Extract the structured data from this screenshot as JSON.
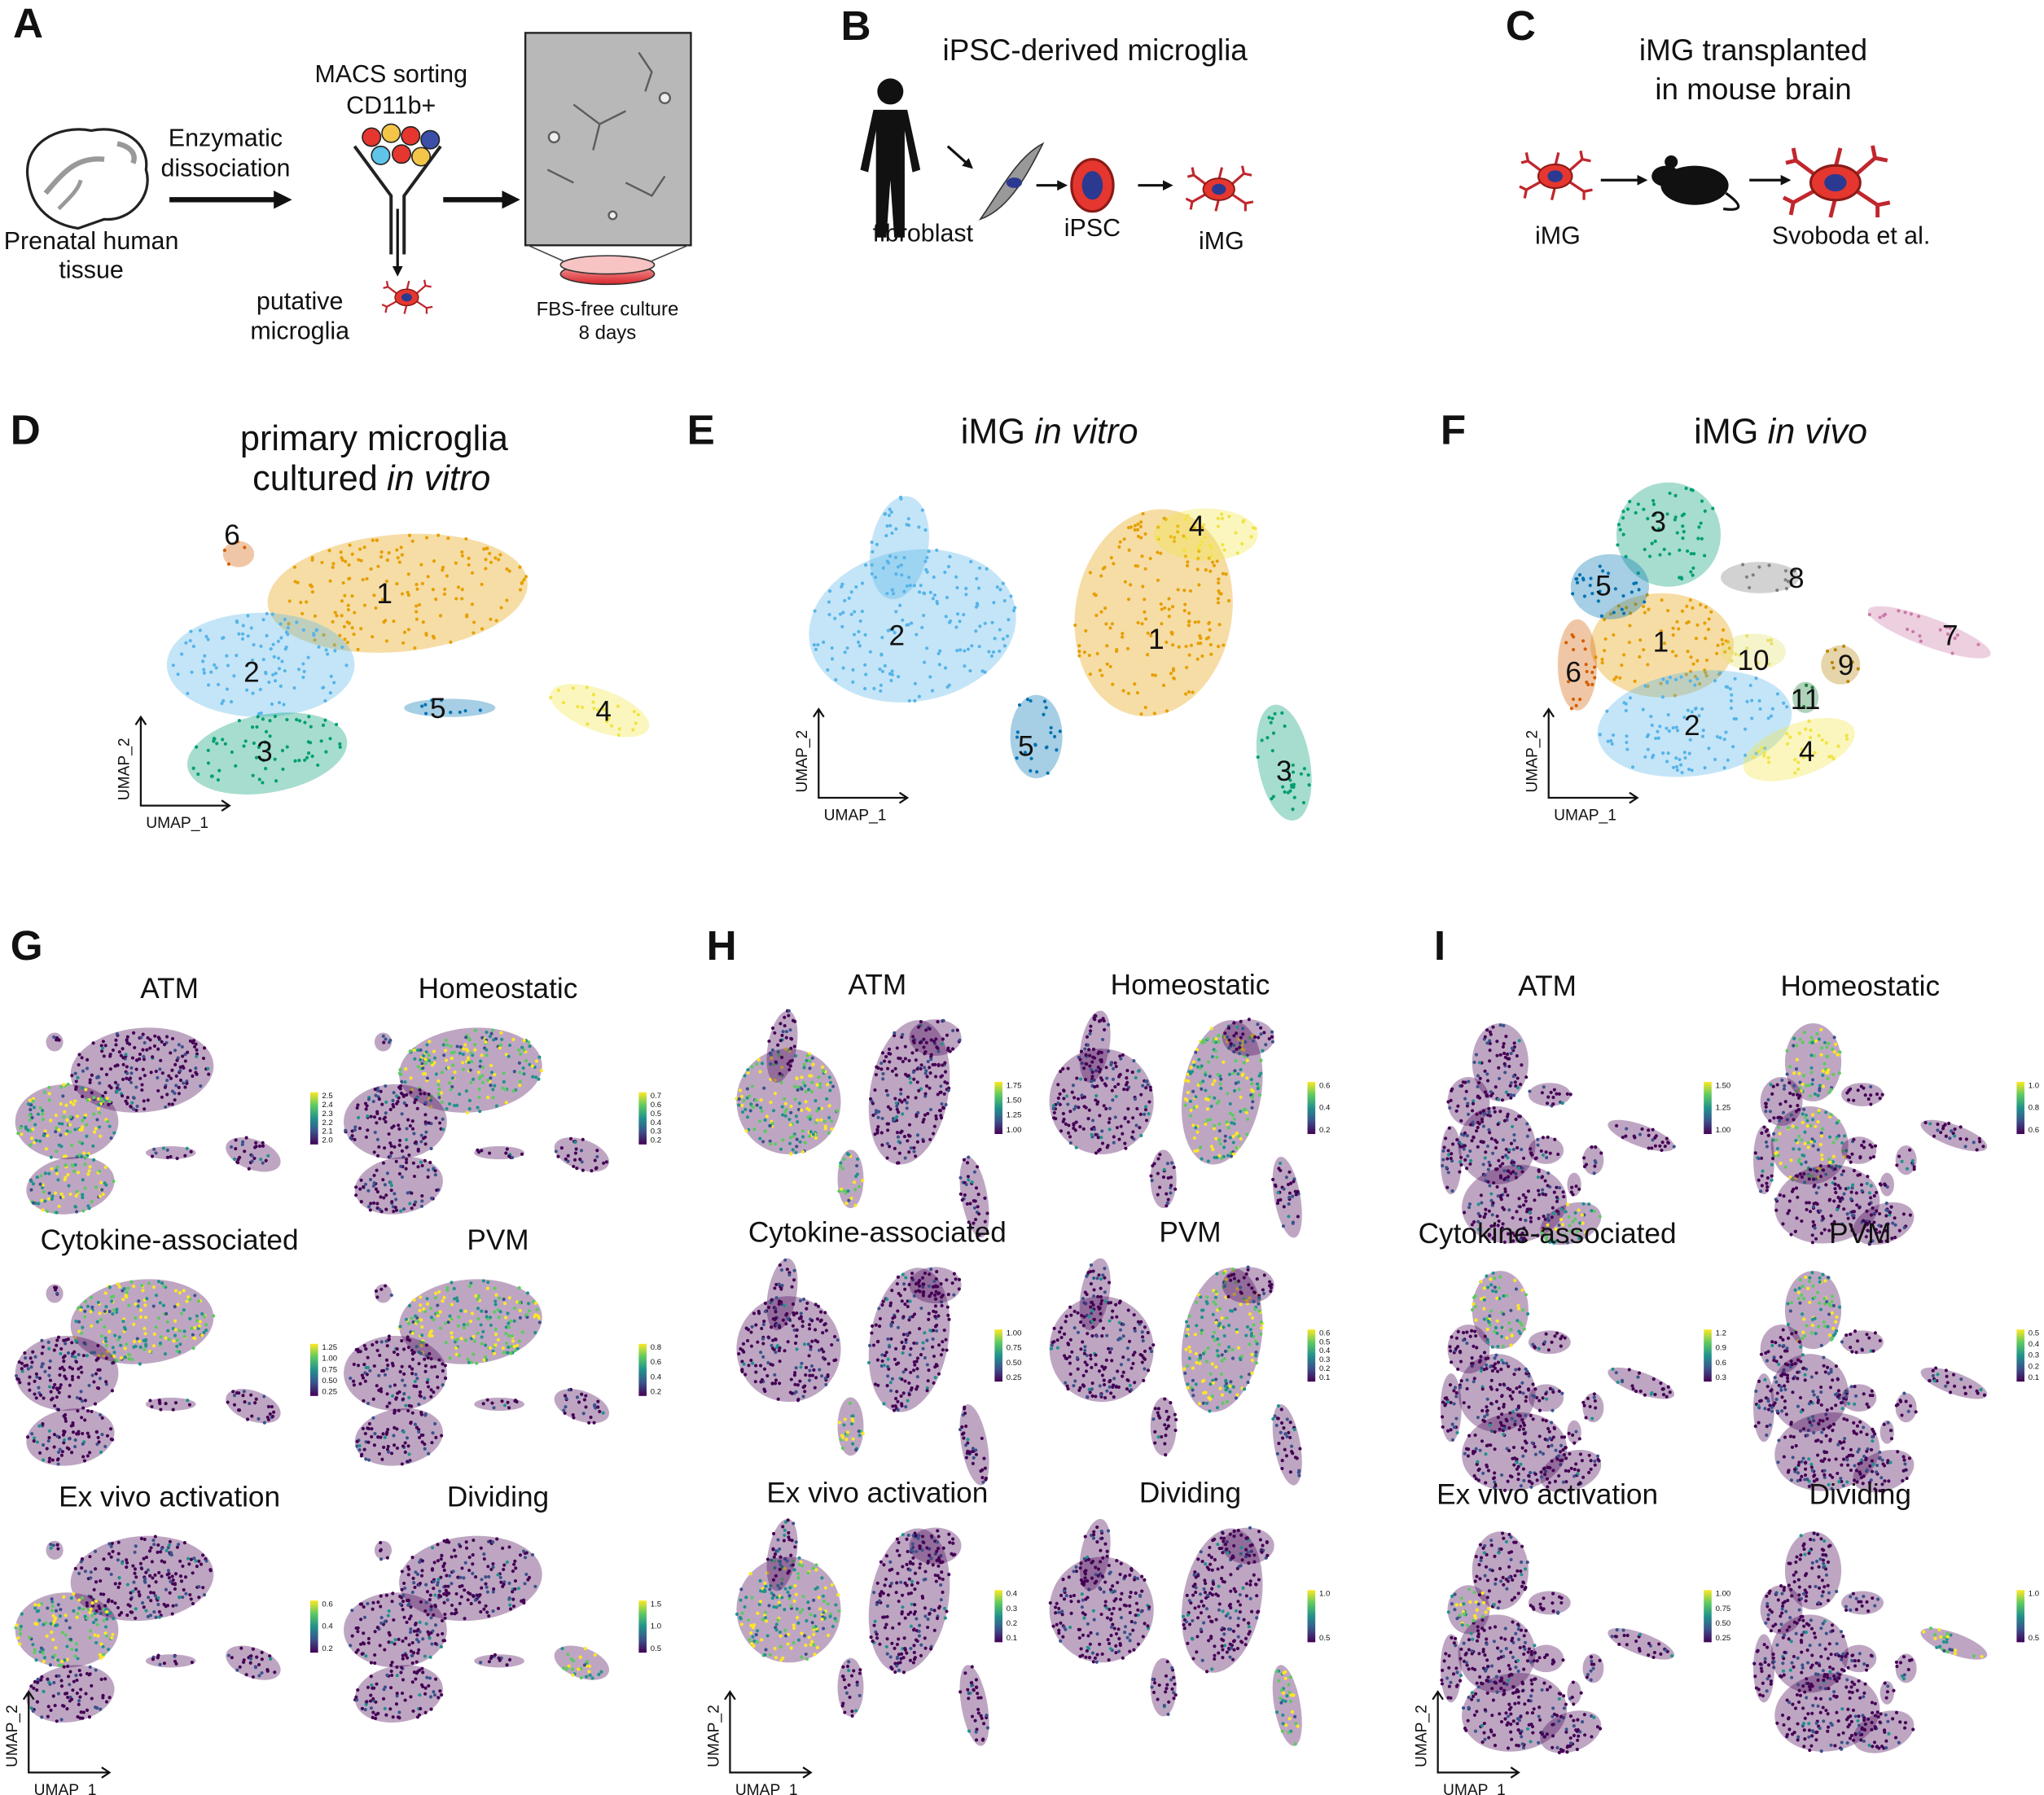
{
  "panels": {
    "A": {
      "letter": "A",
      "source": [
        "Prenatal human",
        "tissue"
      ],
      "step": [
        "Enzymatic",
        "dissociation"
      ],
      "sorting": [
        "MACS sorting",
        "CD11b+"
      ],
      "output": [
        "putative",
        "microglia"
      ],
      "culture": [
        "FBS-free culture",
        "8 days"
      ]
    },
    "B": {
      "letter": "B",
      "title": "iPSC-derived microglia",
      "labels": [
        "fibroblast",
        "iPSC",
        "iMG"
      ]
    },
    "C": {
      "letter": "C",
      "title": [
        "iMG transplanted",
        "in mouse brain"
      ],
      "labels": [
        "iMG",
        "Svoboda et al."
      ]
    },
    "D": {
      "letter": "D",
      "title": [
        "primary microglia",
        "cultured"
      ],
      "title_italic": "in vitro",
      "clusters": [
        "1",
        "2",
        "3",
        "4",
        "5",
        "6"
      ],
      "x_axis": "UMAP_1",
      "y_axis": "UMAP_2"
    },
    "E": {
      "letter": "E",
      "title": "iMG",
      "title_italic": "in vitro",
      "clusters": [
        "1",
        "2",
        "3",
        "4",
        "5"
      ],
      "x_axis": "UMAP_1",
      "y_axis": "UMAP_2"
    },
    "F": {
      "letter": "F",
      "title": "iMG",
      "title_italic": "in vivo",
      "clusters": [
        "1",
        "2",
        "3",
        "4",
        "5",
        "6",
        "7",
        "8",
        "9",
        "10",
        "11"
      ],
      "x_axis": "UMAP_1",
      "y_axis": "UMAP_2"
    },
    "G": {
      "letter": "G",
      "x_axis": "UMAP_1",
      "y_axis": "UMAP_2",
      "plots": [
        {
          "title": "ATM",
          "colorbar_ticks": [
            "2.5",
            "2.4",
            "2.3",
            "2.2",
            "2.1",
            "2.0"
          ]
        },
        {
          "title": "Homeostatic",
          "colorbar_ticks": [
            "0.7",
            "0.6",
            "0.5",
            "0.4",
            "0.3",
            "0.2"
          ]
        },
        {
          "title": "Cytokine-associated",
          "colorbar_ticks": [
            "1.25",
            "1.00",
            "0.75",
            "0.50",
            "0.25"
          ]
        },
        {
          "title": "PVM",
          "colorbar_ticks": [
            "0.8",
            "0.6",
            "0.4",
            "0.2"
          ]
        },
        {
          "title": "Ex vivo activation",
          "colorbar_ticks": [
            "0.6",
            "0.4",
            "0.2"
          ]
        },
        {
          "title": "Dividing",
          "colorbar_ticks": [
            "1.5",
            "1.0",
            "0.5"
          ]
        }
      ]
    },
    "H": {
      "letter": "H",
      "x_axis": "UMAP_1",
      "y_axis": "UMAP_2",
      "plots": [
        {
          "title": "ATM",
          "colorbar_ticks": [
            "1.75",
            "1.50",
            "1.25",
            "1.00"
          ]
        },
        {
          "title": "Homeostatic",
          "colorbar_ticks": [
            "0.6",
            "0.4",
            "0.2"
          ]
        },
        {
          "title": "Cytokine-associated",
          "colorbar_ticks": [
            "1.00",
            "0.75",
            "0.50",
            "0.25"
          ]
        },
        {
          "title": "PVM",
          "colorbar_ticks": [
            "0.6",
            "0.5",
            "0.4",
            "0.3",
            "0.2",
            "0.1"
          ]
        },
        {
          "title": "Ex vivo activation",
          "colorbar_ticks": [
            "0.4",
            "0.3",
            "0.2",
            "0.1"
          ]
        },
        {
          "title": "Dividing",
          "colorbar_ticks": [
            "1.0",
            "0.5"
          ]
        }
      ]
    },
    "I": {
      "letter": "I",
      "x_axis": "UMAP_1",
      "y_axis": "UMAP_2",
      "plots": [
        {
          "title": "ATM",
          "colorbar_ticks": [
            "1.50",
            "1.25",
            "1.00"
          ]
        },
        {
          "title": "Homeostatic",
          "colorbar_ticks": [
            "1.0",
            "0.8",
            "0.6"
          ]
        },
        {
          "title": "Cytokine-associated",
          "colorbar_ticks": [
            "1.2",
            "0.9",
            "0.6",
            "0.3"
          ]
        },
        {
          "title": "PVM",
          "colorbar_ticks": [
            "0.5",
            "0.4",
            "0.3",
            "0.2",
            "0.1"
          ]
        },
        {
          "title": "Ex vivo activation",
          "colorbar_ticks": [
            "1.00",
            "0.75",
            "0.50",
            "0.25"
          ]
        },
        {
          "title": "Dividing",
          "colorbar_ticks": [
            "1.0",
            "0.5"
          ]
        }
      ]
    }
  }
}
